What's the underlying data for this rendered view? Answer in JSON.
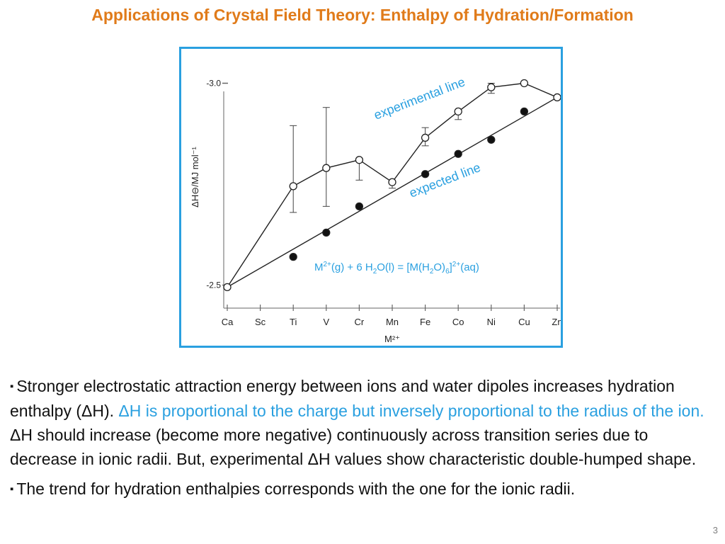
{
  "title": "Applications of Crystal Field Theory: Enthalpy of Hydration/Formation",
  "chart_data": {
    "type": "line",
    "ylabel": "ΔH⊖/MJ mol⁻¹",
    "xlabel": "M²⁺",
    "y_tick_labels": [
      "-3.0",
      "-2.5"
    ],
    "y_ticks": [
      3.0,
      2.5
    ],
    "ylim": [
      2.45,
      3.05
    ],
    "categories": [
      "Ca",
      "Sc",
      "Ti",
      "V",
      "Cr",
      "Mn",
      "Fe",
      "Co",
      "Ni",
      "Cu",
      "Zn"
    ],
    "series": [
      {
        "name": "experimental line",
        "marker": "open-circle",
        "values": [
          2.495,
          null,
          2.745,
          2.79,
          2.81,
          2.755,
          2.865,
          2.93,
          2.99,
          3.0,
          2.965
        ],
        "error_high": [
          null,
          null,
          2.895,
          2.94,
          null,
          null,
          2.89,
          null,
          3.0,
          null,
          null
        ],
        "error_low": [
          null,
          null,
          2.68,
          2.695,
          2.76,
          2.74,
          2.845,
          2.91,
          2.975,
          null,
          null
        ]
      },
      {
        "name": "expected line",
        "marker": "filled-circle",
        "values": [
          2.495,
          null,
          2.57,
          2.63,
          2.695,
          2.755,
          2.775,
          2.825,
          2.86,
          2.93,
          2.965
        ]
      }
    ],
    "series_labels": [
      "experimental line",
      "expected line"
    ],
    "annotation": {
      "text_parts": [
        "M",
        "2+",
        "(g) + 6 H",
        "2",
        "O(l) = [M(H",
        "2",
        "O)",
        "6",
        "]",
        "2+",
        "(aq)"
      ]
    },
    "grid": false,
    "colors": {
      "frame": "#2AA0E0",
      "label": "#2AA0E0",
      "line": "#222222"
    }
  },
  "paragraphs": {
    "p1_bullet": "▪",
    "p1_a": "Stronger electrostatic attraction energy between ions and water dipoles increases hydration enthalpy (ΔH). ",
    "p1_b": "ΔH is proportional to the charge but inversely proportional to the radius of the ion.",
    "p1_c": " ΔH should increase (become more negative) continuously across transition series due to decrease in ionic radii. But, experimental ΔH values show characteristic double-humped shape.",
    "p2_bullet": "▪",
    "p2": "The trend for hydration enthalpies corresponds with the one for the ionic radii."
  },
  "page_number": "3",
  "colors": {
    "title": "#E07B1A",
    "highlight": "#2AA0E0"
  }
}
